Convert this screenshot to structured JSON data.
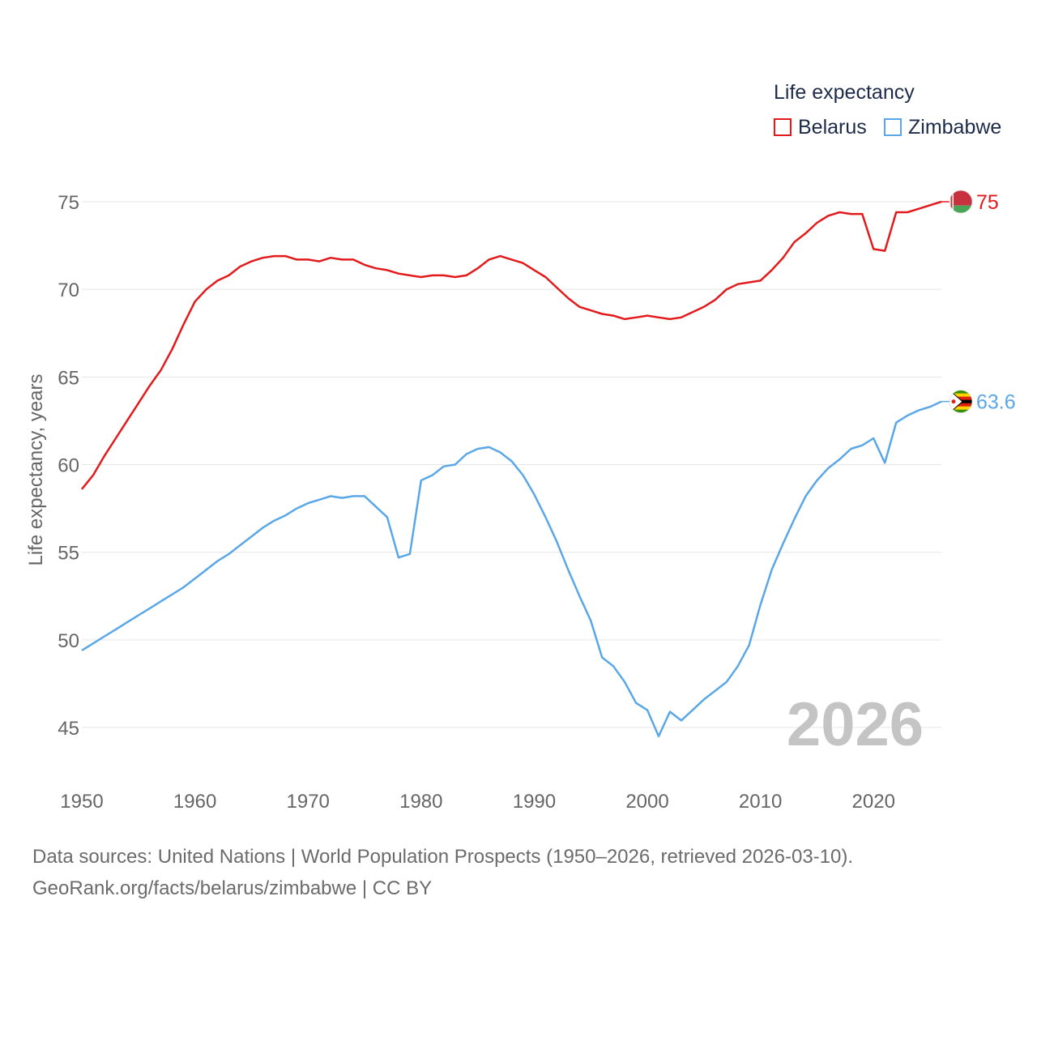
{
  "legend": {
    "title": "Life expectancy",
    "items": [
      {
        "label": "Belarus",
        "color": "#e31a1c"
      },
      {
        "label": "Zimbabwe",
        "color": "#5aa7e8"
      }
    ]
  },
  "footer": {
    "line1": "Data sources: United Nations | World Population Prospects (1950–2026, retrieved 2026-03-10).",
    "line2": "GeoRank.org/facts/belarus/zimbabwe | CC BY"
  },
  "chart_data": {
    "type": "line",
    "title": "Life expectancy",
    "xlabel": "",
    "ylabel": "Life expectancy, years",
    "year_watermark": "2026",
    "xlim": [
      1950,
      2026
    ],
    "ylim": [
      43,
      77
    ],
    "grid": true,
    "legend_position": "top-right",
    "x_ticks": [
      1950,
      1960,
      1970,
      1980,
      1990,
      2000,
      2010,
      2020
    ],
    "y_ticks": [
      45,
      50,
      55,
      60,
      65,
      70,
      75
    ],
    "series": [
      {
        "name": "Belarus",
        "color": "#e31a1c",
        "end_label": "75",
        "flag": "belarus-flag-icon",
        "x": [
          1950,
          1951,
          1952,
          1953,
          1954,
          1955,
          1956,
          1957,
          1958,
          1959,
          1960,
          1961,
          1962,
          1963,
          1964,
          1965,
          1966,
          1967,
          1968,
          1969,
          1970,
          1971,
          1972,
          1973,
          1974,
          1975,
          1976,
          1977,
          1978,
          1979,
          1980,
          1981,
          1982,
          1983,
          1984,
          1985,
          1986,
          1987,
          1988,
          1989,
          1990,
          1991,
          1992,
          1993,
          1994,
          1995,
          1996,
          1997,
          1998,
          1999,
          2000,
          2001,
          2002,
          2003,
          2004,
          2005,
          2006,
          2007,
          2008,
          2009,
          2010,
          2011,
          2012,
          2013,
          2014,
          2015,
          2016,
          2017,
          2018,
          2019,
          2020,
          2021,
          2022,
          2023,
          2024,
          2025,
          2026
        ],
        "values": [
          58.6,
          59.4,
          60.5,
          61.5,
          62.5,
          63.5,
          64.5,
          65.4,
          66.6,
          68.0,
          69.3,
          70.0,
          70.5,
          70.8,
          71.3,
          71.6,
          71.8,
          71.9,
          71.9,
          71.7,
          71.7,
          71.6,
          71.8,
          71.7,
          71.7,
          71.4,
          71.2,
          71.1,
          70.9,
          70.8,
          70.7,
          70.8,
          70.8,
          70.7,
          70.8,
          71.2,
          71.7,
          71.9,
          71.7,
          71.5,
          71.1,
          70.7,
          70.1,
          69.5,
          69.0,
          68.8,
          68.6,
          68.5,
          68.3,
          68.4,
          68.5,
          68.4,
          68.3,
          68.4,
          68.7,
          69.0,
          69.4,
          70.0,
          70.3,
          70.4,
          70.5,
          71.1,
          71.8,
          72.7,
          73.2,
          73.8,
          74.2,
          74.4,
          74.3,
          74.3,
          72.3,
          72.2,
          74.4,
          74.4,
          74.6,
          74.8,
          75.0
        ]
      },
      {
        "name": "Zimbabwe",
        "color": "#5aa7e8",
        "end_label": "63.6",
        "flag": "zimbabwe-flag-icon",
        "x": [
          1950,
          1951,
          1952,
          1953,
          1954,
          1955,
          1956,
          1957,
          1958,
          1959,
          1960,
          1961,
          1962,
          1963,
          1964,
          1965,
          1966,
          1967,
          1968,
          1969,
          1970,
          1971,
          1972,
          1973,
          1974,
          1975,
          1976,
          1977,
          1978,
          1979,
          1980,
          1981,
          1982,
          1983,
          1984,
          1985,
          1986,
          1987,
          1988,
          1989,
          1990,
          1991,
          1992,
          1993,
          1994,
          1995,
          1996,
          1997,
          1998,
          1999,
          2000,
          2001,
          2002,
          2003,
          2004,
          2005,
          2006,
          2007,
          2008,
          2009,
          2010,
          2011,
          2012,
          2013,
          2014,
          2015,
          2016,
          2017,
          2018,
          2019,
          2020,
          2021,
          2022,
          2023,
          2024,
          2025,
          2026
        ],
        "values": [
          49.4,
          49.8,
          50.2,
          50.6,
          51.0,
          51.4,
          51.8,
          52.2,
          52.6,
          53.0,
          53.5,
          54.0,
          54.5,
          54.9,
          55.4,
          55.9,
          56.4,
          56.8,
          57.1,
          57.5,
          57.8,
          58.0,
          58.2,
          58.1,
          58.2,
          58.2,
          57.6,
          57.0,
          54.7,
          54.9,
          59.1,
          59.4,
          59.9,
          60.0,
          60.6,
          60.9,
          61.0,
          60.7,
          60.2,
          59.4,
          58.3,
          57.0,
          55.6,
          54.0,
          52.5,
          51.1,
          49.0,
          48.5,
          47.6,
          46.4,
          46.0,
          44.5,
          45.9,
          45.4,
          46.0,
          46.6,
          47.1,
          47.6,
          48.5,
          49.7,
          52.0,
          54.0,
          55.5,
          56.9,
          58.2,
          59.1,
          59.8,
          60.3,
          60.9,
          61.1,
          61.5,
          60.1,
          62.4,
          62.8,
          63.1,
          63.3,
          63.6
        ]
      }
    ]
  }
}
